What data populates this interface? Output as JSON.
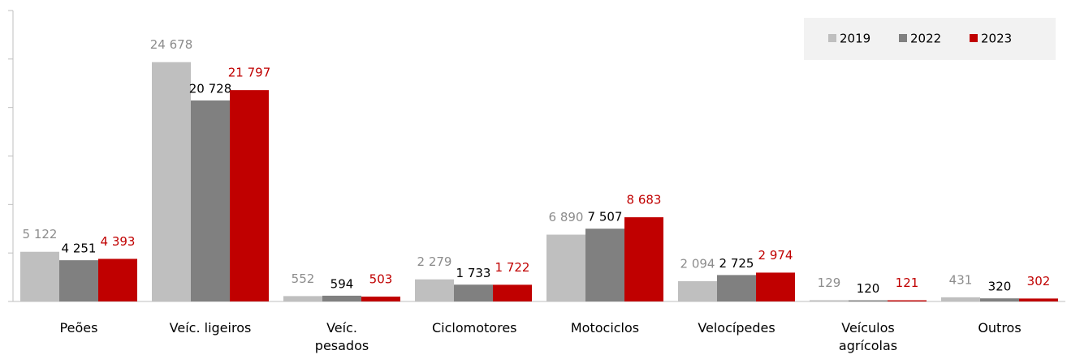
{
  "chart_data": {
    "type": "bar",
    "categories": [
      "Peões",
      "Veíc. ligeiros",
      "Veíc. pesados",
      "Ciclomotores",
      "Motociclos",
      "Velocípedes",
      "Veículos agrícolas",
      "Outros"
    ],
    "series": [
      {
        "name": "2019",
        "color": "#bfbfbf",
        "label_color": "#8c8c8c",
        "values": [
          5122,
          24678,
          552,
          2279,
          6890,
          2094,
          129,
          431
        ],
        "value_labels": [
          "5 122",
          "24 678",
          "552",
          "2 279",
          "6 890",
          "2 094",
          "129",
          "431"
        ]
      },
      {
        "name": "2022",
        "color": "#808080",
        "label_color": "#000000",
        "values": [
          4251,
          20728,
          594,
          1733,
          7507,
          2725,
          120,
          320
        ],
        "value_labels": [
          "4 251",
          "20 728",
          "594",
          "1 733",
          "7 507",
          "2 725",
          "120",
          "320"
        ]
      },
      {
        "name": "2023",
        "color": "#c00000",
        "label_color": "#c00000",
        "values": [
          4393,
          21797,
          503,
          1722,
          8683,
          2974,
          121,
          302
        ],
        "value_labels": [
          "4 393",
          "21 797",
          "503",
          "1 722",
          "8 683",
          "2 974",
          "121",
          "302"
        ]
      }
    ],
    "ylim": [
      0,
      30000
    ],
    "yticks": [
      0,
      5000,
      10000,
      15000,
      20000,
      25000,
      30000
    ],
    "legend": "top-right"
  }
}
